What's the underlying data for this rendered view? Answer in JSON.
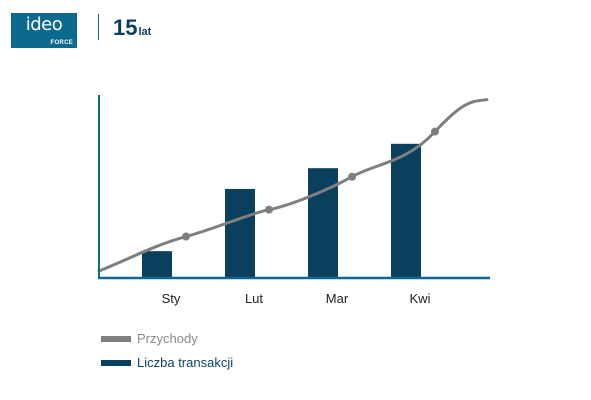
{
  "header": {
    "logo_main": "ideo",
    "logo_sub": "FORCE",
    "anniversary_number": "15",
    "anniversary_word": "lat"
  },
  "chart_data": {
    "type": "bar",
    "categories": [
      "Sty",
      "Lut",
      "Mar",
      "Kwi"
    ],
    "series": [
      {
        "name": "Liczba transakcji",
        "type": "bar",
        "color": "#0b3f5e",
        "values": [
          22,
          73,
          90,
          110
        ]
      },
      {
        "name": "Przychody",
        "type": "line",
        "color": "#7f7f7f",
        "values": [
          34,
          56,
          83,
          120
        ]
      }
    ],
    "ylim": [
      0,
      150
    ],
    "grid": false,
    "axis_color": "#0c6a8e",
    "legend_position": "bottom-left"
  },
  "legend": {
    "items": [
      {
        "label": "Przychody"
      },
      {
        "label": "Liczba transakcji"
      }
    ]
  }
}
